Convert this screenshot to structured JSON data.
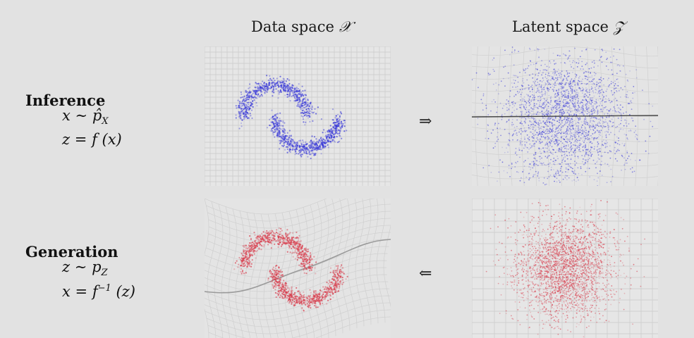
{
  "header": {
    "data_space_label": "Data space",
    "data_space_symbol": "𝒳",
    "latent_space_label": "Latent space",
    "latent_space_symbol": "𝒵"
  },
  "inference": {
    "title": "Inference",
    "eq1_lhs": "x",
    "eq1_rel": "∼",
    "eq1_rhs": "p̂",
    "eq1_sub": "X",
    "eq2_lhs": "z",
    "eq2_rel": "=",
    "eq2_rhs": "f (x)",
    "arrow": "⇒"
  },
  "generation": {
    "title": "Generation",
    "eq1_lhs": "z",
    "eq1_rel": "∼",
    "eq1_rhs": "p",
    "eq1_sub": "Z",
    "eq2_lhs": "x",
    "eq2_rel": "=",
    "eq2_rhs": "f",
    "eq2_sup": "−1",
    "eq2_arg": "(z)",
    "arrow": "⇐"
  },
  "colors": {
    "background": "#e2e2e2",
    "inference_points": "#3a3ad8",
    "generation_points": "#d83a4a",
    "grid": "#c9c9c9"
  }
}
